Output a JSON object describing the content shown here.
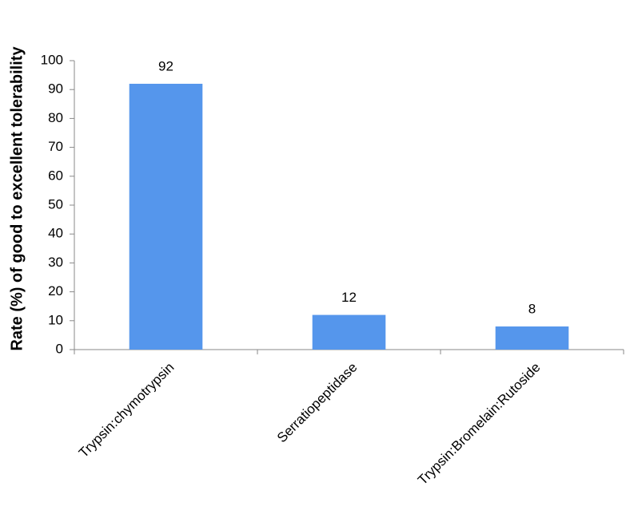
{
  "chart_data": {
    "type": "bar",
    "y_label": "Rate (%) of good to excellent tolerability",
    "categories": [
      "Trypsin:chymotrypsin",
      "Serratiopeptidase",
      "Trypsin:Bromelain:Rutoside"
    ],
    "values": [
      92,
      12,
      8
    ],
    "color": "#5596ec",
    "ylim": [
      0,
      100
    ],
    "yticks": [
      0,
      10,
      20,
      30,
      40,
      50,
      60,
      70,
      80,
      90,
      100
    ],
    "grid": false,
    "data_labels": true
  }
}
